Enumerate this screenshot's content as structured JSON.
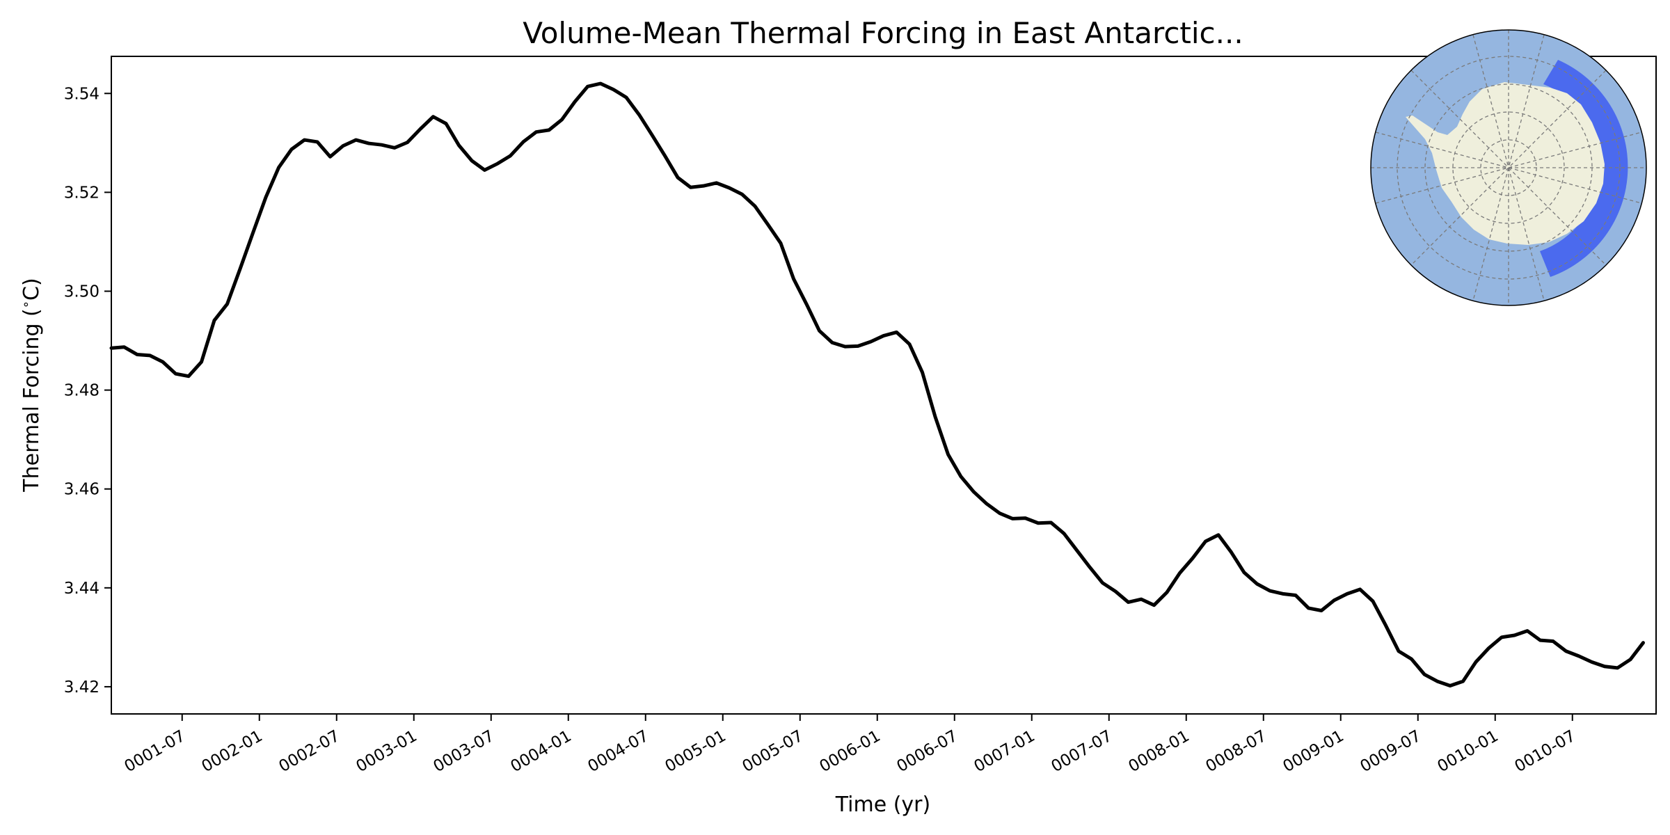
{
  "chart_data": {
    "type": "line",
    "title": "Volume-Mean Thermal Forcing in East Antarctic...",
    "xlabel": "Time (yr)",
    "ylabel": "Thermal Forcing ($^\\circ$C)",
    "ylabel_parts": {
      "before": "Thermal Forcing (",
      "degree": "∘",
      "after": "C)"
    },
    "ylim": [
      3.4145,
      3.5475
    ],
    "xlim": [
      0.0,
      120.0
    ],
    "grid": false,
    "legend": "none",
    "line_color": "#000000",
    "x_ticks": [
      {
        "pos": 5.5,
        "label": "0001-07"
      },
      {
        "pos": 11.5,
        "label": "0002-01"
      },
      {
        "pos": 17.5,
        "label": "0002-07"
      },
      {
        "pos": 23.5,
        "label": "0003-01"
      },
      {
        "pos": 29.5,
        "label": "0003-07"
      },
      {
        "pos": 35.5,
        "label": "0004-01"
      },
      {
        "pos": 41.5,
        "label": "0004-07"
      },
      {
        "pos": 47.5,
        "label": "0005-01"
      },
      {
        "pos": 53.5,
        "label": "0005-07"
      },
      {
        "pos": 59.5,
        "label": "0006-01"
      },
      {
        "pos": 65.5,
        "label": "0006-07"
      },
      {
        "pos": 71.5,
        "label": "0007-01"
      },
      {
        "pos": 77.5,
        "label": "0007-07"
      },
      {
        "pos": 83.5,
        "label": "0008-01"
      },
      {
        "pos": 89.5,
        "label": "0008-07"
      },
      {
        "pos": 95.5,
        "label": "0009-01"
      },
      {
        "pos": 101.5,
        "label": "0009-07"
      },
      {
        "pos": 107.5,
        "label": "0010-01"
      },
      {
        "pos": 113.5,
        "label": "0010-07"
      }
    ],
    "y_ticks": [
      {
        "value": 3.42,
        "label": "3.42"
      },
      {
        "value": 3.44,
        "label": "3.44"
      },
      {
        "value": 3.46,
        "label": "3.46"
      },
      {
        "value": 3.48,
        "label": "3.48"
      },
      {
        "value": 3.5,
        "label": "3.50"
      },
      {
        "value": 3.52,
        "label": "3.52"
      },
      {
        "value": 3.54,
        "label": "3.54"
      }
    ],
    "series": [
      {
        "name": "Thermal Forcing",
        "values": [
          3.4885,
          3.4887,
          3.4872,
          3.487,
          3.4857,
          3.4833,
          3.4828,
          3.4857,
          3.4941,
          3.4974,
          3.5045,
          3.5118,
          3.519,
          3.525,
          3.5287,
          3.5306,
          3.5302,
          3.5272,
          3.5294,
          3.5306,
          3.5299,
          3.5296,
          3.529,
          3.5301,
          3.5328,
          3.5353,
          3.5339,
          3.5295,
          3.5264,
          3.5245,
          3.5258,
          3.5274,
          3.5302,
          3.5322,
          3.5326,
          3.5347,
          3.5383,
          3.5414,
          3.542,
          3.5408,
          3.5392,
          3.5357,
          3.5316,
          3.5274,
          3.523,
          3.521,
          3.5213,
          3.5219,
          3.5209,
          3.5196,
          3.5172,
          3.5135,
          3.5097,
          3.5025,
          3.4974,
          3.492,
          3.4896,
          3.4888,
          3.4889,
          3.4898,
          3.491,
          3.4917,
          3.4893,
          3.4836,
          3.4746,
          3.467,
          3.4625,
          3.4594,
          3.457,
          3.4551,
          3.454,
          3.4541,
          3.4531,
          3.4532,
          3.451,
          3.4476,
          3.4442,
          3.441,
          3.4393,
          3.4371,
          3.4377,
          3.4365,
          3.4391,
          3.443,
          3.446,
          3.4494,
          3.4507,
          3.4472,
          3.4431,
          3.4408,
          3.4394,
          3.4388,
          3.4385,
          3.4359,
          3.4354,
          3.4375,
          3.4388,
          3.4397,
          3.4373,
          3.4324,
          3.4272,
          3.4256,
          3.4225,
          3.4211,
          3.4202,
          3.4211,
          3.425,
          3.4278,
          3.43,
          3.4304,
          3.4313,
          3.4294,
          3.4292,
          3.4272,
          3.4262,
          3.425,
          3.4241,
          3.4238,
          3.4255,
          3.4289
        ]
      }
    ],
    "inset_map": {
      "type": "polar-map",
      "ocean_color": "#95b6e0",
      "land_color": "#efefdc",
      "region_color": "#3e5df0"
    }
  }
}
